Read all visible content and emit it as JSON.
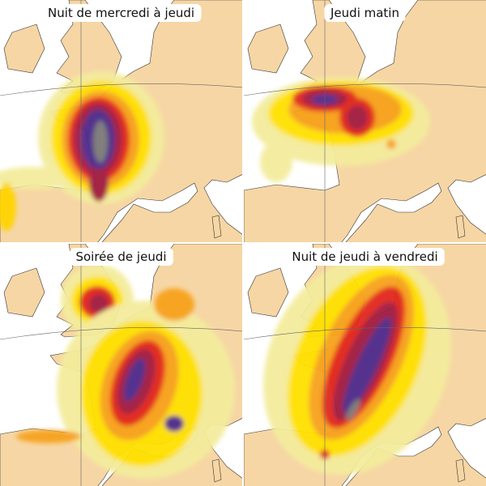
{
  "panels": [
    {
      "title": "Nuit de mercredi à jeudi"
    },
    {
      "title": "Jeudi matin"
    },
    {
      "title": "Soirée de jeudi"
    },
    {
      "title": "Nuit de jeudi à vendredi"
    }
  ]
}
